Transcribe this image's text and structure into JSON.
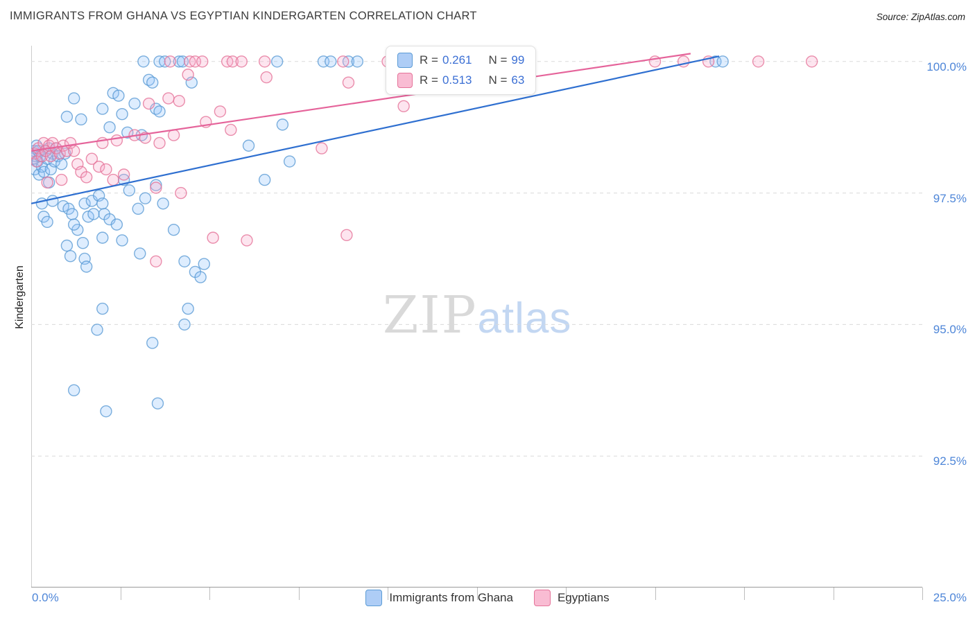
{
  "page": {
    "title": "IMMIGRANTS FROM GHANA VS EGYPTIAN KINDERGARTEN CORRELATION CHART",
    "source": "Source: ZipAtlas.com"
  },
  "watermark": {
    "zip": "ZIP",
    "atlas": "atlas"
  },
  "axis": {
    "y_label": "Kindergarten",
    "x_min_label": "0.0%",
    "x_max_label": "25.0%",
    "y_tick_labels": [
      "100.0%",
      "97.5%",
      "95.0%",
      "92.5%"
    ]
  },
  "legend_box": {
    "rows": [
      {
        "r_label": "R =",
        "r_value": "0.261",
        "n_label": "N =",
        "n_value": "99"
      },
      {
        "r_label": "R =",
        "r_value": "0.513",
        "n_label": "N =",
        "n_value": "63"
      }
    ]
  },
  "bottom_legend": {
    "items": [
      {
        "label": "Immigrants from Ghana"
      },
      {
        "label": "Egyptians"
      }
    ]
  },
  "colors": {
    "accent_blue": "#3b6fd4",
    "axis_label_blue": "#4e86d8",
    "ghana_stroke": "#5b9bd5",
    "ghana_fill": "#93c5fd",
    "egypt_stroke": "#e57399",
    "egypt_fill": "#f9a8c9"
  },
  "chart_data": {
    "type": "scatter",
    "title": "IMMIGRANTS FROM GHANA VS EGYPTIAN KINDERGARTEN CORRELATION CHART",
    "xlabel": "",
    "ylabel": "Kindergarten",
    "xlim": [
      0,
      25
    ],
    "ylim": [
      90,
      100.3
    ],
    "y_gridlines": [
      100,
      97.5,
      95,
      92.5
    ],
    "x_tick_step": 2.5,
    "grid": "dashed-horizontal",
    "legend_position": "top-center",
    "series": [
      {
        "name": "Immigrants from Ghana",
        "R": 0.261,
        "N": 99,
        "color": "#5b9bd5",
        "fill": "#93c5fd",
        "line_color": "#2e6fd0",
        "trend": {
          "x": [
            0,
            19.3
          ],
          "y": [
            97.3,
            100.1
          ]
        },
        "points": [
          [
            0.05,
            98.15
          ],
          [
            0.08,
            98.3
          ],
          [
            0.1,
            97.95
          ],
          [
            0.12,
            98.2
          ],
          [
            0.15,
            98.4
          ],
          [
            0.18,
            98.1
          ],
          [
            0.2,
            98.3
          ],
          [
            0.22,
            97.85
          ],
          [
            0.25,
            98.2
          ],
          [
            0.3,
            98.0
          ],
          [
            0.36,
            97.9
          ],
          [
            0.4,
            98.3
          ],
          [
            0.45,
            98.15
          ],
          [
            0.5,
            98.35
          ],
          [
            0.55,
            97.95
          ],
          [
            0.6,
            98.25
          ],
          [
            0.65,
            98.1
          ],
          [
            0.7,
            98.35
          ],
          [
            0.75,
            98.2
          ],
          [
            0.85,
            98.05
          ],
          [
            0.95,
            98.25
          ],
          [
            0.3,
            97.3
          ],
          [
            0.35,
            97.05
          ],
          [
            0.5,
            97.7
          ],
          [
            0.6,
            97.35
          ],
          [
            0.9,
            97.25
          ],
          [
            0.45,
            96.95
          ],
          [
            1.2,
            93.75
          ],
          [
            2.1,
            93.35
          ],
          [
            3.55,
            93.5
          ],
          [
            3.4,
            94.65
          ],
          [
            1.85,
            94.9
          ],
          [
            4.3,
            95.0
          ],
          [
            2.0,
            95.3
          ],
          [
            1.0,
            96.5
          ],
          [
            1.1,
            96.3
          ],
          [
            1.3,
            96.8
          ],
          [
            1.45,
            96.55
          ],
          [
            1.5,
            96.25
          ],
          [
            1.55,
            96.1
          ],
          [
            1.05,
            97.2
          ],
          [
            1.15,
            97.1
          ],
          [
            1.2,
            96.9
          ],
          [
            1.5,
            97.3
          ],
          [
            1.6,
            97.05
          ],
          [
            1.7,
            97.35
          ],
          [
            1.75,
            97.1
          ],
          [
            1.9,
            97.45
          ],
          [
            2.0,
            97.3
          ],
          [
            2.05,
            97.1
          ],
          [
            2.2,
            97.0
          ],
          [
            2.4,
            96.9
          ],
          [
            2.55,
            96.6
          ],
          [
            2.0,
            96.65
          ],
          [
            2.6,
            97.75
          ],
          [
            2.75,
            97.55
          ],
          [
            3.0,
            97.2
          ],
          [
            3.2,
            97.4
          ],
          [
            3.5,
            97.65
          ],
          [
            3.7,
            97.3
          ],
          [
            3.05,
            96.35
          ],
          [
            4.0,
            96.8
          ],
          [
            4.3,
            96.2
          ],
          [
            4.6,
            96.0
          ],
          [
            4.75,
            95.9
          ],
          [
            4.4,
            95.3
          ],
          [
            4.85,
            96.15
          ],
          [
            1.0,
            98.95
          ],
          [
            1.2,
            99.3
          ],
          [
            1.4,
            98.9
          ],
          [
            2.0,
            99.1
          ],
          [
            2.3,
            99.4
          ],
          [
            2.45,
            99.35
          ],
          [
            2.55,
            99.0
          ],
          [
            2.9,
            99.2
          ],
          [
            3.3,
            99.65
          ],
          [
            3.4,
            99.6
          ],
          [
            3.5,
            99.1
          ],
          [
            3.6,
            99.05
          ],
          [
            4.5,
            99.6
          ],
          [
            2.2,
            98.75
          ],
          [
            2.7,
            98.65
          ],
          [
            3.1,
            98.6
          ],
          [
            3.15,
            100
          ],
          [
            3.6,
            100
          ],
          [
            3.75,
            100
          ],
          [
            4.15,
            100
          ],
          [
            4.25,
            100
          ],
          [
            6.9,
            100
          ],
          [
            8.2,
            100
          ],
          [
            8.4,
            100
          ],
          [
            8.9,
            100
          ],
          [
            9.15,
            100
          ],
          [
            19.2,
            100
          ],
          [
            19.4,
            100
          ],
          [
            6.1,
            98.4
          ],
          [
            7.05,
            98.8
          ],
          [
            7.25,
            98.1
          ],
          [
            6.55,
            97.75
          ]
        ]
      },
      {
        "name": "Egyptians",
        "R": 0.513,
        "N": 63,
        "color": "#e57399",
        "fill": "#f9a8c9",
        "line_color": "#e5639a",
        "trend": {
          "x": [
            0,
            18.5
          ],
          "y": [
            98.3,
            100.15
          ]
        },
        "points": [
          [
            0.1,
            98.25
          ],
          [
            0.15,
            98.1
          ],
          [
            0.2,
            98.35
          ],
          [
            0.3,
            98.2
          ],
          [
            0.35,
            98.45
          ],
          [
            0.4,
            98.3
          ],
          [
            0.5,
            98.4
          ],
          [
            0.55,
            98.2
          ],
          [
            0.6,
            98.45
          ],
          [
            0.7,
            98.35
          ],
          [
            0.8,
            98.25
          ],
          [
            0.9,
            98.4
          ],
          [
            1.0,
            98.3
          ],
          [
            1.1,
            98.45
          ],
          [
            1.2,
            98.3
          ],
          [
            1.3,
            98.05
          ],
          [
            1.4,
            97.9
          ],
          [
            1.55,
            97.8
          ],
          [
            0.45,
            97.7
          ],
          [
            0.85,
            97.75
          ],
          [
            1.7,
            98.15
          ],
          [
            1.9,
            98.0
          ],
          [
            2.1,
            97.95
          ],
          [
            2.3,
            97.75
          ],
          [
            2.6,
            97.85
          ],
          [
            3.5,
            97.6
          ],
          [
            4.2,
            97.5
          ],
          [
            2.0,
            98.45
          ],
          [
            2.4,
            98.5
          ],
          [
            2.9,
            98.6
          ],
          [
            3.2,
            98.55
          ],
          [
            3.6,
            98.45
          ],
          [
            4.0,
            98.6
          ],
          [
            3.3,
            99.2
          ],
          [
            3.85,
            99.3
          ],
          [
            4.15,
            99.25
          ],
          [
            4.4,
            99.75
          ],
          [
            5.3,
            99.05
          ],
          [
            6.6,
            99.7
          ],
          [
            8.9,
            99.6
          ],
          [
            10.45,
            99.15
          ],
          [
            4.9,
            98.85
          ],
          [
            5.6,
            98.7
          ],
          [
            3.5,
            96.2
          ],
          [
            5.1,
            96.65
          ],
          [
            6.05,
            96.6
          ],
          [
            8.85,
            96.7
          ],
          [
            8.15,
            98.35
          ],
          [
            3.9,
            100
          ],
          [
            4.45,
            100
          ],
          [
            4.6,
            100
          ],
          [
            4.8,
            100
          ],
          [
            5.5,
            100
          ],
          [
            5.65,
            100
          ],
          [
            5.9,
            100
          ],
          [
            6.55,
            100
          ],
          [
            8.75,
            100
          ],
          [
            10.0,
            100
          ],
          [
            17.5,
            100
          ],
          [
            18.3,
            100
          ],
          [
            19.0,
            100
          ],
          [
            20.4,
            100
          ],
          [
            21.9,
            100
          ]
        ]
      }
    ]
  }
}
